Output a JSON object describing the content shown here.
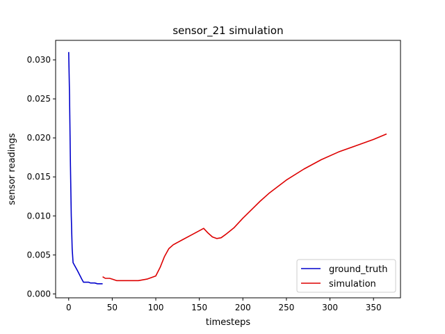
{
  "chart_data": {
    "type": "line",
    "title": "sensor_21 simulation",
    "xlabel": "timesteps",
    "ylabel": "sensor readings",
    "xlim": [
      -15,
      381
    ],
    "ylim": [
      -0.0005,
      0.0325
    ],
    "xticks": [
      0,
      50,
      100,
      150,
      200,
      250,
      300,
      350
    ],
    "yticks": [
      0.0,
      0.005,
      0.01,
      0.015,
      0.02,
      0.025,
      0.03
    ],
    "ytick_labels": [
      "0.000",
      "0.005",
      "0.010",
      "0.015",
      "0.020",
      "0.025",
      "0.030"
    ],
    "grid": false,
    "legend_position": "lower-right",
    "series": [
      {
        "name": "ground_truth",
        "color": "#0000cc",
        "x": [
          0,
          1,
          2,
          3,
          4,
          5,
          10,
          15,
          17,
          20,
          23,
          25,
          28,
          30,
          33,
          35,
          38,
          39
        ],
        "y": [
          0.031,
          0.0255,
          0.0165,
          0.01,
          0.0058,
          0.004,
          0.003,
          0.0019,
          0.0015,
          0.0015,
          0.0015,
          0.0014,
          0.0014,
          0.0014,
          0.0013,
          0.0013,
          0.0013,
          0.0013
        ]
      },
      {
        "name": "simulation",
        "color": "#dd0000",
        "x": [
          39,
          42,
          47,
          50,
          55,
          60,
          70,
          80,
          90,
          100,
          105,
          110,
          115,
          120,
          130,
          140,
          150,
          155,
          160,
          165,
          170,
          175,
          180,
          190,
          200,
          210,
          220,
          230,
          250,
          270,
          290,
          310,
          330,
          350,
          365
        ],
        "y": [
          0.0022,
          0.002,
          0.002,
          0.0019,
          0.0017,
          0.0017,
          0.0017,
          0.0017,
          0.0019,
          0.0023,
          0.0034,
          0.0048,
          0.0058,
          0.0063,
          0.0069,
          0.0075,
          0.0081,
          0.0084,
          0.0078,
          0.0073,
          0.0071,
          0.0072,
          0.0076,
          0.0085,
          0.0097,
          0.0108,
          0.0119,
          0.0129,
          0.0146,
          0.016,
          0.0172,
          0.0182,
          0.019,
          0.0198,
          0.0205
        ]
      }
    ]
  }
}
